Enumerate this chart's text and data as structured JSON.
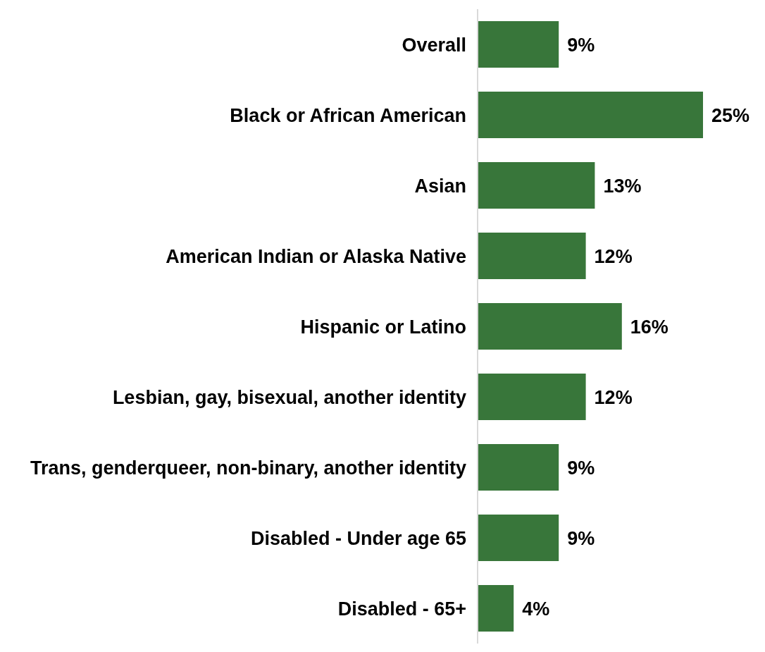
{
  "chart_data": {
    "type": "bar",
    "orientation": "horizontal",
    "categories": [
      "Overall",
      "Black or African American",
      "Asian",
      "American Indian or Alaska Native",
      "Hispanic or Latino",
      "Lesbian, gay, bisexual, another identity",
      "Trans, genderqueer, non-binary, another identity",
      "Disabled - Under age 65",
      "Disabled - 65+"
    ],
    "values": [
      9,
      25,
      13,
      12,
      16,
      12,
      9,
      9,
      4
    ],
    "value_labels": [
      "9%",
      "25%",
      "13%",
      "12%",
      "16%",
      "12%",
      "9%",
      "9%",
      "4%"
    ],
    "color": "#38763a"
  }
}
